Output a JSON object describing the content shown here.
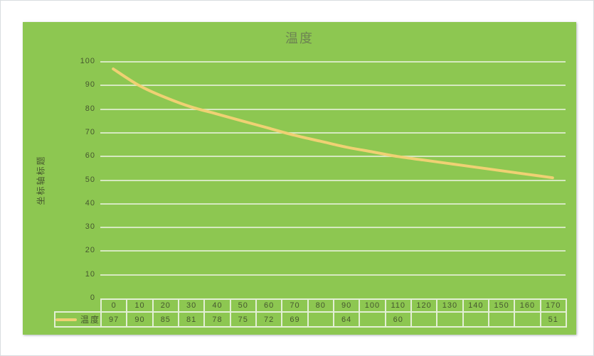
{
  "chart": {
    "title": "温度",
    "y_axis_title": "坐标轴标题",
    "series_label": "温度",
    "colors": {
      "plot_background": "#8dc751",
      "line": "#efd173",
      "gridline": "#e3efd4",
      "text": "#46572f",
      "title_text": "#6d8352"
    }
  },
  "chart_data": {
    "type": "line",
    "title": "温度",
    "ylabel": "坐标轴标题",
    "categories": [
      0,
      10,
      20,
      30,
      40,
      50,
      60,
      70,
      80,
      90,
      100,
      110,
      120,
      130,
      140,
      150,
      160,
      170
    ],
    "series": [
      {
        "name": "温度",
        "values": [
          97,
          90,
          85,
          81,
          78,
          75,
          72,
          69,
          null,
          64,
          null,
          60,
          null,
          null,
          null,
          null,
          null,
          51
        ]
      }
    ],
    "ylim": [
      0,
      100
    ],
    "y_tick_step": 10,
    "grid": true,
    "smooth": true,
    "legend_position": "bottom-table",
    "data_table_shown": true
  }
}
